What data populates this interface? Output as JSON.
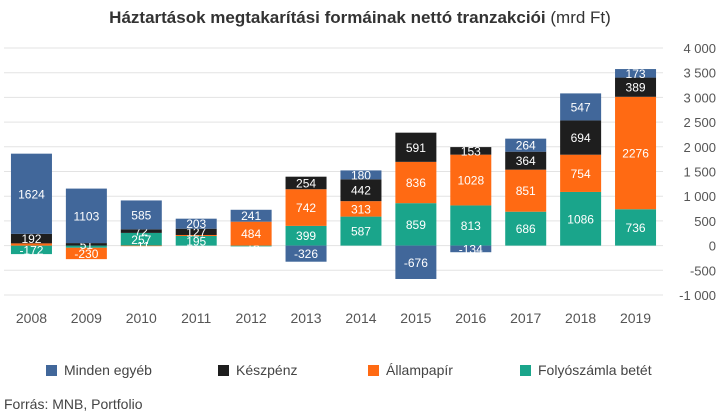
{
  "title_bold": "Háztartások megtakarítási formáinak nettó tranzakciói",
  "title_unit": " (mrd Ft)",
  "source": "Forrás: MNB, Portfolio",
  "chart_data": {
    "type": "bar",
    "stacked": true,
    "categories": [
      "2008",
      "2009",
      "2010",
      "2011",
      "2012",
      "2013",
      "2014",
      "2015",
      "2016",
      "2017",
      "2018",
      "2019"
    ],
    "ylim": [
      -1000,
      4000
    ],
    "yticks": [
      4000,
      3500,
      3000,
      2500,
      2000,
      1500,
      1000,
      500,
      0,
      -500,
      -1000
    ],
    "ytick_labels": [
      "4 000",
      "3 500",
      "3 000",
      "2 500",
      "2 000",
      "1 500",
      "1 000",
      "500",
      "0",
      "-500",
      "-1 000"
    ],
    "legend_position": "bottom",
    "series": [
      {
        "name": "Folyószámla betét",
        "color": "#1aa58b",
        "values": [
          -172,
          -44,
          257,
          195,
          -16,
          399,
          587,
          859,
          813,
          686,
          1086,
          736
        ],
        "labels": [
          "-172",
          "",
          "257",
          "195",
          "-16",
          "399",
          "587",
          "859",
          "813",
          "686",
          "1086",
          "736"
        ]
      },
      {
        "name": "Állampapír",
        "color": "#ff6a13",
        "values": [
          45,
          -230,
          -11,
          20,
          484,
          742,
          313,
          836,
          1028,
          851,
          754,
          2276
        ],
        "labels": [
          "",
          "-230",
          "-11",
          "",
          "484",
          "742",
          "313",
          "836",
          "1028",
          "851",
          "754",
          "2276"
        ]
      },
      {
        "name": "Készpénz",
        "color": "#1e1e1e",
        "values": [
          192,
          51,
          72,
          127,
          0,
          254,
          442,
          591,
          153,
          364,
          694,
          389
        ],
        "labels": [
          "192",
          "51",
          "72",
          "127",
          "",
          "254",
          "442",
          "591",
          "153",
          "364",
          "694",
          "389"
        ]
      },
      {
        "name": "Minden egyéb",
        "color": "#41679a",
        "values": [
          1624,
          1103,
          585,
          203,
          241,
          -326,
          180,
          -676,
          -134,
          264,
          547,
          173
        ],
        "labels": [
          "1624",
          "1103",
          "585",
          "203",
          "241",
          "-326",
          "180",
          "-676",
          "-134",
          "264",
          "547",
          "173"
        ]
      }
    ],
    "legend_order": [
      "Minden egyéb",
      "Készpénz",
      "Állampapír",
      "Folyószámla betét"
    ]
  }
}
